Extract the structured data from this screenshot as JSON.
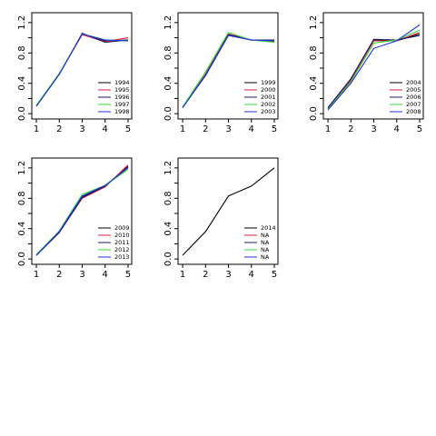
{
  "chart_data": [
    {
      "type": "line",
      "x": [
        1,
        2,
        3,
        4,
        5
      ],
      "xlim": [
        0.8,
        5.16
      ],
      "xticks": [
        1,
        2,
        3,
        4,
        5
      ],
      "ylim": [
        -0.07,
        1.33
      ],
      "yticks": [
        {
          "value": 0,
          "label": "0.0"
        },
        {
          "value": 0.4,
          "label": "0.4"
        },
        {
          "value": 0.8,
          "label": "0.8"
        },
        {
          "value": 1.2,
          "label": "1.2"
        }
      ],
      "yminorticks": [
        0.2,
        0.6,
        1.0
      ],
      "legend": "bottomright",
      "series": [
        {
          "name": "1994",
          "color": "#000000",
          "values": [
            0.1,
            0.52,
            1.05,
            0.96,
            0.97
          ]
        },
        {
          "name": "1995",
          "color": "#DF2040",
          "values": [
            0.1,
            0.53,
            1.04,
            0.95,
            1.0
          ]
        },
        {
          "name": "1996",
          "color": "#1a1a6e",
          "values": [
            0.1,
            0.52,
            1.06,
            0.94,
            0.97
          ]
        },
        {
          "name": "1997",
          "color": "#33dd33",
          "values": [
            0.11,
            0.53,
            1.05,
            0.97,
            0.96
          ]
        },
        {
          "name": "1998",
          "color": "#2233dd",
          "values": [
            0.1,
            0.52,
            1.05,
            0.97,
            0.96
          ]
        }
      ]
    },
    {
      "type": "line",
      "x": [
        1,
        2,
        3,
        4,
        5
      ],
      "xlim": [
        0.8,
        5.16
      ],
      "xticks": [
        1,
        2,
        3,
        4,
        5
      ],
      "ylim": [
        -0.07,
        1.33
      ],
      "yticks": [
        {
          "value": 0,
          "label": "0.0"
        },
        {
          "value": 0.4,
          "label": "0.4"
        },
        {
          "value": 0.8,
          "label": "0.8"
        },
        {
          "value": 1.2,
          "label": "1.2"
        }
      ],
      "yminorticks": [
        0.2,
        0.6,
        1.0
      ],
      "legend": "bottomright",
      "series": [
        {
          "name": "1999",
          "color": "#000000",
          "values": [
            0.08,
            0.51,
            1.04,
            0.97,
            0.97
          ]
        },
        {
          "name": "2000",
          "color": "#DF2040",
          "values": [
            0.08,
            0.52,
            1.05,
            0.97,
            0.95
          ]
        },
        {
          "name": "2001",
          "color": "#1a1a6e",
          "values": [
            0.08,
            0.51,
            1.04,
            0.97,
            0.97
          ]
        },
        {
          "name": "2002",
          "color": "#33dd33",
          "values": [
            0.09,
            0.55,
            1.07,
            0.97,
            0.94
          ]
        },
        {
          "name": "2003",
          "color": "#2233dd",
          "values": [
            0.08,
            0.5,
            1.03,
            0.97,
            0.96
          ]
        }
      ]
    },
    {
      "type": "line",
      "x": [
        1,
        2,
        3,
        4,
        5
      ],
      "xlim": [
        0.8,
        5.16
      ],
      "xticks": [
        1,
        2,
        3,
        4,
        5
      ],
      "ylim": [
        -0.07,
        1.33
      ],
      "yticks": [
        {
          "value": 0,
          "label": "0.0"
        },
        {
          "value": 0.4,
          "label": "0.4"
        },
        {
          "value": 0.8,
          "label": "0.8"
        },
        {
          "value": 1.2,
          "label": "1.2"
        }
      ],
      "yminorticks": [
        0.2,
        0.6,
        1.0
      ],
      "legend": "bottomright",
      "series": [
        {
          "name": "2004",
          "color": "#000000",
          "values": [
            0.07,
            0.45,
            0.97,
            0.96,
            1.05
          ]
        },
        {
          "name": "2005",
          "color": "#DF2040",
          "values": [
            0.06,
            0.44,
            0.96,
            0.96,
            1.07
          ]
        },
        {
          "name": "2006",
          "color": "#1a1a6e",
          "values": [
            0.08,
            0.46,
            0.98,
            0.97,
            1.03
          ]
        },
        {
          "name": "2007",
          "color": "#33dd33",
          "values": [
            0.06,
            0.42,
            0.93,
            0.97,
            1.1
          ]
        },
        {
          "name": "2008",
          "color": "#2233dd",
          "values": [
            0.05,
            0.4,
            0.86,
            0.96,
            1.17
          ]
        }
      ]
    },
    {
      "type": "line",
      "x": [
        1,
        2,
        3,
        4,
        5
      ],
      "xlim": [
        0.8,
        5.16
      ],
      "xticks": [
        1,
        2,
        3,
        4,
        5
      ],
      "ylim": [
        -0.07,
        1.33
      ],
      "yticks": [
        {
          "value": 0,
          "label": "0.0"
        },
        {
          "value": 0.4,
          "label": "0.4"
        },
        {
          "value": 0.8,
          "label": "0.8"
        },
        {
          "value": 1.2,
          "label": "1.2"
        }
      ],
      "yminorticks": [
        0.2,
        0.6,
        1.0
      ],
      "legend": "bottomright",
      "series": [
        {
          "name": "2009",
          "color": "#000000",
          "values": [
            0.05,
            0.35,
            0.82,
            0.96,
            1.22
          ]
        },
        {
          "name": "2010",
          "color": "#DF2040",
          "values": [
            0.05,
            0.35,
            0.8,
            0.95,
            1.24
          ]
        },
        {
          "name": "2011",
          "color": "#1a1a6e",
          "values": [
            0.05,
            0.35,
            0.81,
            0.96,
            1.21
          ]
        },
        {
          "name": "2012",
          "color": "#33dd33",
          "values": [
            0.06,
            0.37,
            0.85,
            0.97,
            1.18
          ]
        },
        {
          "name": "2013",
          "color": "#2233dd",
          "values": [
            0.05,
            0.36,
            0.83,
            0.97,
            1.2
          ]
        }
      ]
    },
    {
      "type": "line",
      "x": [
        1,
        2,
        3,
        4,
        5
      ],
      "xlim": [
        0.8,
        5.16
      ],
      "xticks": [
        1,
        2,
        3,
        4,
        5
      ],
      "ylim": [
        -0.07,
        1.33
      ],
      "yticks": [
        {
          "value": 0,
          "label": "0.0"
        },
        {
          "value": 0.4,
          "label": "0.4"
        },
        {
          "value": 0.8,
          "label": "0.8"
        },
        {
          "value": 1.2,
          "label": "1.2"
        }
      ],
      "yminorticks": [
        0.2,
        0.6,
        1.0
      ],
      "legend": "bottomright",
      "series": [
        {
          "name": "2014",
          "color": "#000000",
          "values": [
            0.05,
            0.36,
            0.83,
            0.96,
            1.2
          ]
        },
        {
          "name": "NA",
          "color": "#DF2040",
          "values": [
            null,
            null,
            null,
            null,
            null
          ]
        },
        {
          "name": "NA",
          "color": "#1a1a6e",
          "values": [
            null,
            null,
            null,
            null,
            null
          ]
        },
        {
          "name": "NA",
          "color": "#33dd33",
          "values": [
            null,
            null,
            null,
            null,
            null
          ]
        },
        {
          "name": "NA",
          "color": "#2233dd",
          "values": [
            null,
            null,
            null,
            null,
            null
          ]
        }
      ]
    }
  ]
}
